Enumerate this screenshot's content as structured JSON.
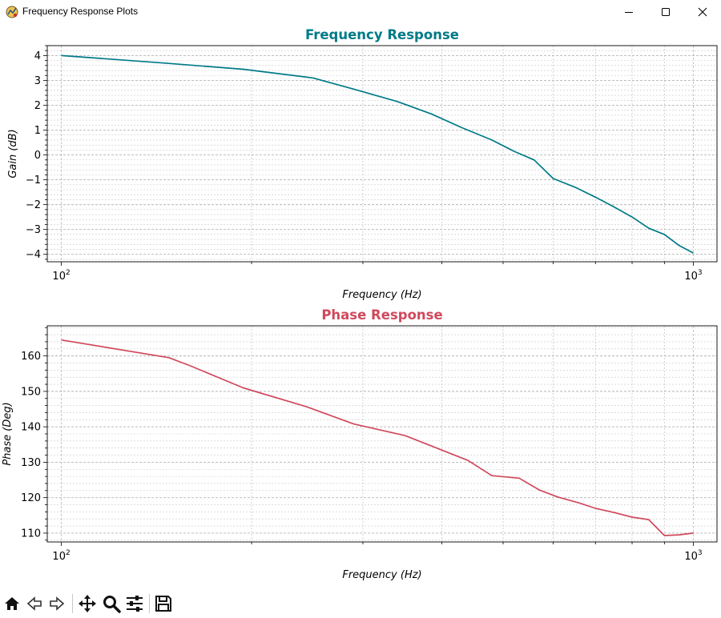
{
  "window": {
    "title": "Frequency Response Plots"
  },
  "icons": {
    "app": "python-figure-icon",
    "minimize": "minimize-icon",
    "maximize": "maximize-icon",
    "close": "close-icon"
  },
  "toolbar": {
    "tools": [
      "home-icon",
      "back-arrow-icon",
      "forward-arrow-icon",
      "pan-icon",
      "zoom-icon",
      "configure-subplots-icon",
      "save-icon"
    ]
  },
  "colors": {
    "gain": "#007a87",
    "phase": "#d0495d",
    "grid": "#b0b0b0"
  },
  "chart_data": [
    {
      "type": "line",
      "title": "Frequency Response",
      "xlabel": "Frequency (Hz)",
      "ylabel": "Gain (dB)",
      "xscale": "log",
      "xlim": [
        95,
        1090
      ],
      "ylim": [
        -4.3,
        4.4
      ],
      "xticks": [
        {
          "value": 100,
          "base": "10",
          "exp": "2"
        },
        {
          "value": 1000,
          "base": "10",
          "exp": "3"
        }
      ],
      "yticks": [
        4,
        3,
        2,
        1,
        0,
        -1,
        -2,
        -3,
        -4
      ],
      "ytick_labels": [
        "4",
        "3",
        "2",
        "1",
        "0",
        "−1",
        "−2",
        "−3",
        "−4"
      ],
      "grid": true,
      "color": "#007a87",
      "x": [
        100,
        145,
        194,
        250,
        290,
        340,
        385,
        430,
        480,
        520,
        560,
        600,
        650,
        700,
        750,
        800,
        850,
        900,
        950,
        1000
      ],
      "y": [
        4.0,
        3.7,
        3.45,
        3.1,
        2.65,
        2.15,
        1.65,
        1.1,
        0.6,
        0.15,
        -0.2,
        -0.95,
        -1.3,
        -1.7,
        -2.1,
        -2.5,
        -2.95,
        -3.2,
        -3.65,
        -3.95
      ]
    },
    {
      "type": "line",
      "title": "Phase Response",
      "xlabel": "Frequency (Hz)",
      "ylabel": "Phase (Deg)",
      "xscale": "log",
      "xlim": [
        95,
        1090
      ],
      "ylim": [
        107.5,
        168.5
      ],
      "xticks": [
        {
          "value": 100,
          "base": "10",
          "exp": "2"
        },
        {
          "value": 1000,
          "base": "10",
          "exp": "3"
        }
      ],
      "yticks": [
        160,
        150,
        140,
        130,
        120,
        110
      ],
      "ytick_labels": [
        "160",
        "150",
        "140",
        "130",
        "120",
        "110"
      ],
      "grid": true,
      "color": "#d0495d",
      "x": [
        100,
        148,
        160,
        194,
        245,
        290,
        350,
        390,
        440,
        480,
        530,
        570,
        610,
        660,
        700,
        750,
        800,
        850,
        900,
        950,
        1000
      ],
      "y": [
        164.5,
        159.5,
        157.2,
        151.0,
        145.6,
        140.8,
        137.5,
        134.2,
        130.5,
        126.2,
        125.5,
        122.2,
        120.2,
        118.5,
        117.0,
        115.8,
        114.5,
        113.8,
        109.3,
        109.5,
        110.0
      ]
    }
  ]
}
